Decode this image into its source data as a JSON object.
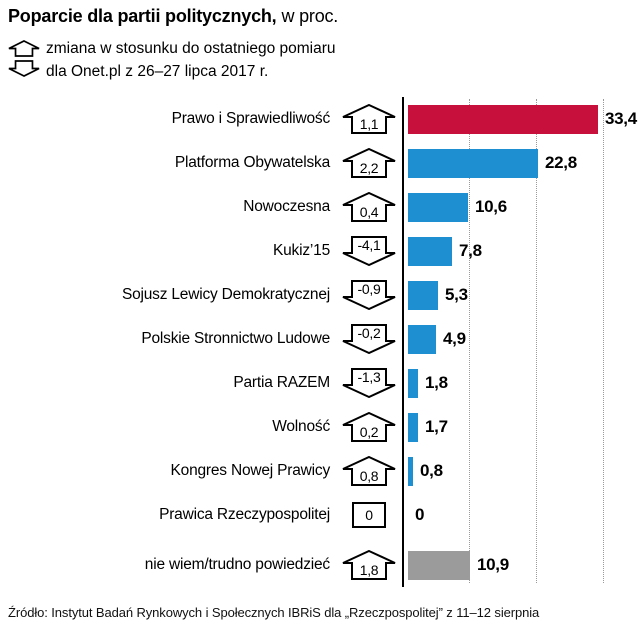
{
  "header": {
    "title_bold": "Poparcie dla partii politycznych,",
    "title_rest": "w proc."
  },
  "legend": {
    "up_icon": "arrow-up-icon",
    "down_icon": "arrow-down-icon",
    "line1": "zmiana w stosunku do ostatniego pomiaru",
    "line2": "dla Onet.pl z 26–27 lipca 2017 r."
  },
  "footer": {
    "source": "Źródło: Instytut Badań Rynkowych i Społecznych IBRiS dla „Rzeczpospolitej” z 11–12 sierpnia"
  },
  "colors": {
    "pis_red": "#c8103c",
    "bar_blue": "#1e8fd0",
    "undecided_gray": "#9b9b9b",
    "axis_black": "#000000",
    "gridline_gray": "#9a9a9a"
  },
  "chart_data": {
    "type": "bar",
    "orientation": "horizontal",
    "title": "Poparcie dla partii politycznych, w proc.",
    "subtitle": "zmiana w stosunku do ostatniego pomiaru dla Onet.pl z 26–27 lipca 2017 r.",
    "xlim": [
      0,
      35
    ],
    "grid": "dotted-vertical",
    "categories": [
      "Prawo i Sprawiedliwość",
      "Platforma Obywatelska",
      "Nowoczesna",
      "Kukiz’15",
      "Sojusz Lewicy Demokratycznej",
      "Polskie Stronnictwo Ludowe",
      "Partia RAZEM",
      "Wolność",
      "Kongres Nowej Prawicy",
      "Prawica Rzeczypospolitej",
      "nie wiem/trudno powiedzieć"
    ],
    "values": [
      33.4,
      22.8,
      10.6,
      7.8,
      5.3,
      4.9,
      1.8,
      1.7,
      0.8,
      0,
      10.9
    ],
    "value_labels": [
      "33,4",
      "22,8",
      "10,6",
      "7,8",
      "5,3",
      "4,9",
      "1,8",
      "1,7",
      "0,8",
      "0",
      "10,9"
    ],
    "changes": [
      "1,1",
      "2,2",
      "0,4",
      "-4,1",
      "-0,9",
      "-0,2",
      "-1,3",
      "0,2",
      "0,8",
      "0",
      "1,8"
    ],
    "change_directions": [
      "up",
      "up",
      "up",
      "down",
      "down",
      "down",
      "down",
      "up",
      "up",
      "none",
      "up"
    ],
    "bar_colors": [
      "#c8103c",
      "#1e8fd0",
      "#1e8fd0",
      "#1e8fd0",
      "#1e8fd0",
      "#1e8fd0",
      "#1e8fd0",
      "#1e8fd0",
      "#1e8fd0",
      "#1e8fd0",
      "#9b9b9b"
    ]
  }
}
